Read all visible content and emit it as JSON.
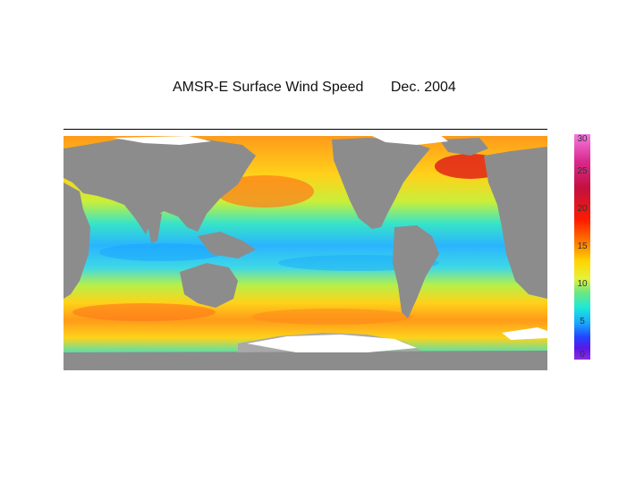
{
  "title": {
    "main": "AMSR-E  Surface Wind Speed",
    "date": "Dec. 2004"
  },
  "colorbar": {
    "ticks": [
      "30",
      "25",
      "20",
      "15",
      "10",
      "5",
      "0"
    ],
    "colors": [
      "#f47adf",
      "#d92a8e",
      "#c3113f",
      "#ff1a00",
      "#ff7a00",
      "#ffd200",
      "#e6f23a",
      "#6fe87d",
      "#1ee8d8",
      "#19a6ff",
      "#2244ff",
      "#8a2be2"
    ]
  },
  "map": {
    "land_color": "#8c8c8c",
    "ice_color": "#ffffff"
  }
}
